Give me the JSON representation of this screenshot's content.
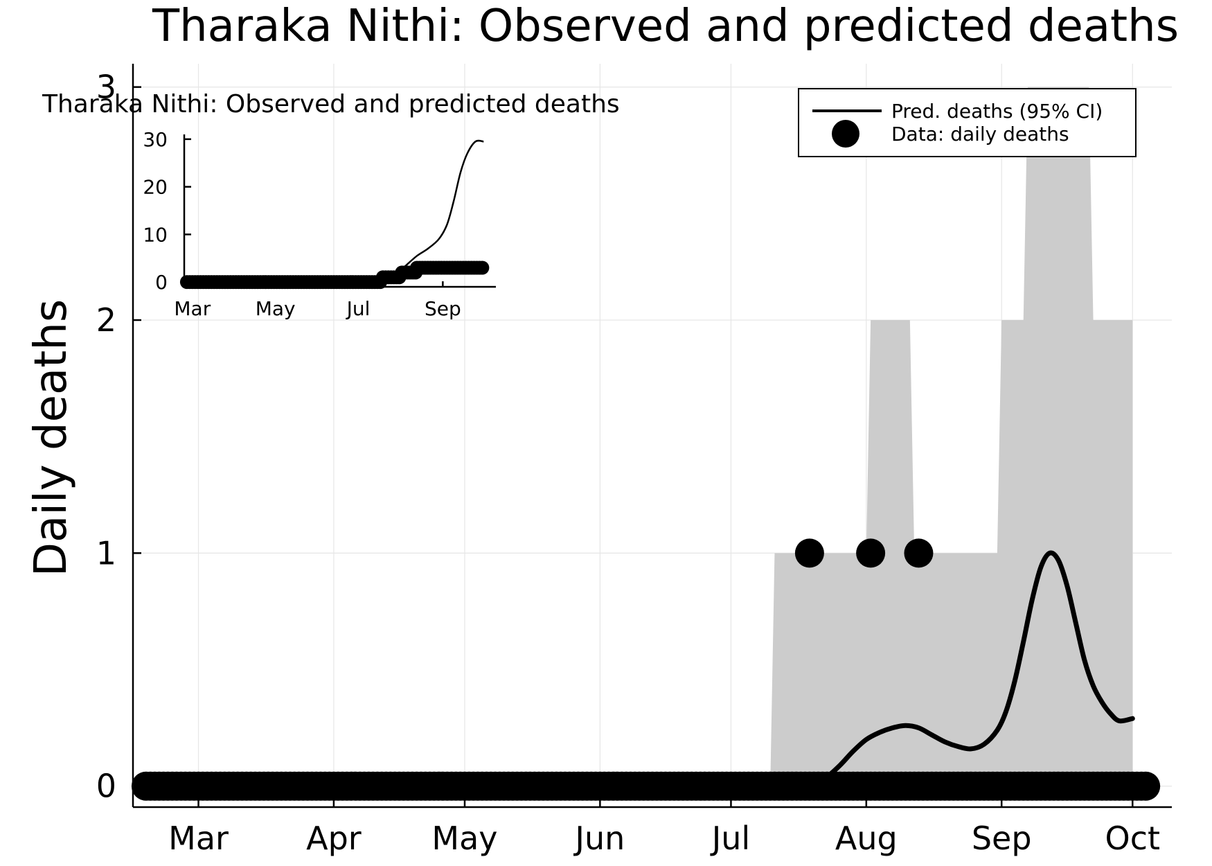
{
  "chart_data": [
    {
      "type": "line",
      "title": "Tharaka Nithi: Observed and predicted deaths",
      "ylabel": "Daily deaths",
      "xlabel": "",
      "x_range": [
        "2020-02-15",
        "2020-10-10"
      ],
      "ylim": [
        -0.09,
        3.1
      ],
      "grid": true,
      "legend": {
        "placement": "top-right",
        "entries": [
          {
            "label": "Pred. deaths (95% CI)",
            "symbol": "line"
          },
          {
            "label": "Data: daily deaths",
            "symbol": "dot"
          }
        ]
      },
      "x_ticks": [
        {
          "date": "2020-03-01",
          "label": "Mar"
        },
        {
          "date": "2020-04-01",
          "label": "Apr"
        },
        {
          "date": "2020-05-01",
          "label": "May"
        },
        {
          "date": "2020-06-01",
          "label": "Jun"
        },
        {
          "date": "2020-07-01",
          "label": "Jul"
        },
        {
          "date": "2020-08-01",
          "label": "Aug"
        },
        {
          "date": "2020-09-01",
          "label": "Sep"
        },
        {
          "date": "2020-10-01",
          "label": "Oct"
        }
      ],
      "y_ticks": [
        {
          "value": 0,
          "label": "0"
        },
        {
          "value": 1,
          "label": "1"
        },
        {
          "value": 2,
          "label": "2"
        },
        {
          "value": 3,
          "label": "3"
        }
      ],
      "series": [
        {
          "name": "Pred. deaths (95% CI)",
          "kind": "line",
          "color": "#000000",
          "points": [
            [
              "2020-02-23",
              0
            ],
            [
              "2020-07-14",
              0
            ],
            [
              "2020-07-20",
              0.01
            ],
            [
              "2020-07-23",
              0.04
            ],
            [
              "2020-07-26",
              0.09
            ],
            [
              "2020-07-29",
              0.15
            ],
            [
              "2020-08-01",
              0.2
            ],
            [
              "2020-08-04",
              0.23
            ],
            [
              "2020-08-07",
              0.25
            ],
            [
              "2020-08-10",
              0.26
            ],
            [
              "2020-08-13",
              0.25
            ],
            [
              "2020-08-16",
              0.22
            ],
            [
              "2020-08-19",
              0.19
            ],
            [
              "2020-08-22",
              0.17
            ],
            [
              "2020-08-25",
              0.16
            ],
            [
              "2020-08-28",
              0.18
            ],
            [
              "2020-08-31",
              0.24
            ],
            [
              "2020-09-02",
              0.32
            ],
            [
              "2020-09-04",
              0.45
            ],
            [
              "2020-09-06",
              0.62
            ],
            [
              "2020-09-08",
              0.8
            ],
            [
              "2020-09-10",
              0.94
            ],
            [
              "2020-09-12",
              1.0
            ],
            [
              "2020-09-14",
              0.97
            ],
            [
              "2020-09-16",
              0.86
            ],
            [
              "2020-09-18",
              0.7
            ],
            [
              "2020-09-20",
              0.54
            ],
            [
              "2020-09-22",
              0.43
            ],
            [
              "2020-09-24",
              0.36
            ],
            [
              "2020-09-26",
              0.31
            ],
            [
              "2020-09-28",
              0.28
            ],
            [
              "2020-10-01",
              0.29
            ]
          ]
        },
        {
          "name": "Pred. deaths (95% CI)",
          "kind": "band",
          "color": "#cccccc",
          "points": [
            [
              "2020-07-10",
              0,
              0
            ],
            [
              "2020-07-11",
              0,
              1
            ],
            [
              "2020-08-01",
              0,
              1
            ],
            [
              "2020-08-02",
              0,
              2
            ],
            [
              "2020-08-11",
              0,
              2
            ],
            [
              "2020-08-12",
              0,
              1
            ],
            [
              "2020-08-31",
              0,
              1
            ],
            [
              "2020-09-01",
              0,
              2
            ],
            [
              "2020-09-06",
              0,
              2
            ],
            [
              "2020-09-07",
              0,
              3
            ],
            [
              "2020-09-21",
              0,
              3
            ],
            [
              "2020-09-22",
              0,
              2
            ],
            [
              "2020-10-01",
              0,
              2
            ],
            [
              "2020-10-01",
              0,
              0
            ]
          ]
        },
        {
          "name": "Data: daily deaths",
          "kind": "scatter",
          "color": "#000000",
          "zero_range": [
            "2020-02-18",
            "2020-10-04"
          ],
          "nonzero_points": [
            [
              "2020-07-19",
              1
            ],
            [
              "2020-08-02",
              1
            ],
            [
              "2020-08-13",
              1
            ]
          ]
        }
      ]
    },
    {
      "type": "line",
      "title": "Tharaka Nithi: Observed and predicted deaths",
      "x_range": [
        "2020-02-24",
        "2020-10-10"
      ],
      "ylim": [
        -1,
        31
      ],
      "grid": false,
      "x_ticks": [
        {
          "date": "2020-03-01",
          "label": "Mar"
        },
        {
          "date": "2020-05-01",
          "label": "May"
        },
        {
          "date": "2020-07-01",
          "label": "Jul"
        },
        {
          "date": "2020-09-01",
          "label": "Sep"
        }
      ],
      "y_ticks": [
        {
          "value": 0,
          "label": "0"
        },
        {
          "value": 10,
          "label": "10"
        },
        {
          "value": 20,
          "label": "20"
        },
        {
          "value": 30,
          "label": "30"
        }
      ],
      "series": [
        {
          "name": "",
          "kind": "line",
          "color": "#000000",
          "points": [
            [
              "2020-02-26",
              0
            ],
            [
              "2020-07-12",
              0
            ],
            [
              "2020-07-20",
              0.2
            ],
            [
              "2020-07-28",
              1.5
            ],
            [
              "2020-08-05",
              3.5
            ],
            [
              "2020-08-13",
              5.5
            ],
            [
              "2020-08-21",
              7
            ],
            [
              "2020-08-29",
              9
            ],
            [
              "2020-09-04",
              12
            ],
            [
              "2020-09-09",
              17
            ],
            [
              "2020-09-14",
              23
            ],
            [
              "2020-09-19",
              27
            ],
            [
              "2020-09-25",
              29.5
            ],
            [
              "2020-10-01",
              29.5
            ]
          ]
        },
        {
          "name": "",
          "kind": "scatter",
          "color": "#000000",
          "points": [
            [
              "2020-02-26",
              0
            ],
            [
              "2020-07-18",
              0
            ],
            [
              "2020-07-19",
              1
            ],
            [
              "2020-08-01",
              1
            ],
            [
              "2020-08-02",
              2
            ],
            [
              "2020-08-12",
              2
            ],
            [
              "2020-08-13",
              3
            ],
            [
              "2020-10-01",
              3
            ]
          ]
        }
      ]
    }
  ]
}
